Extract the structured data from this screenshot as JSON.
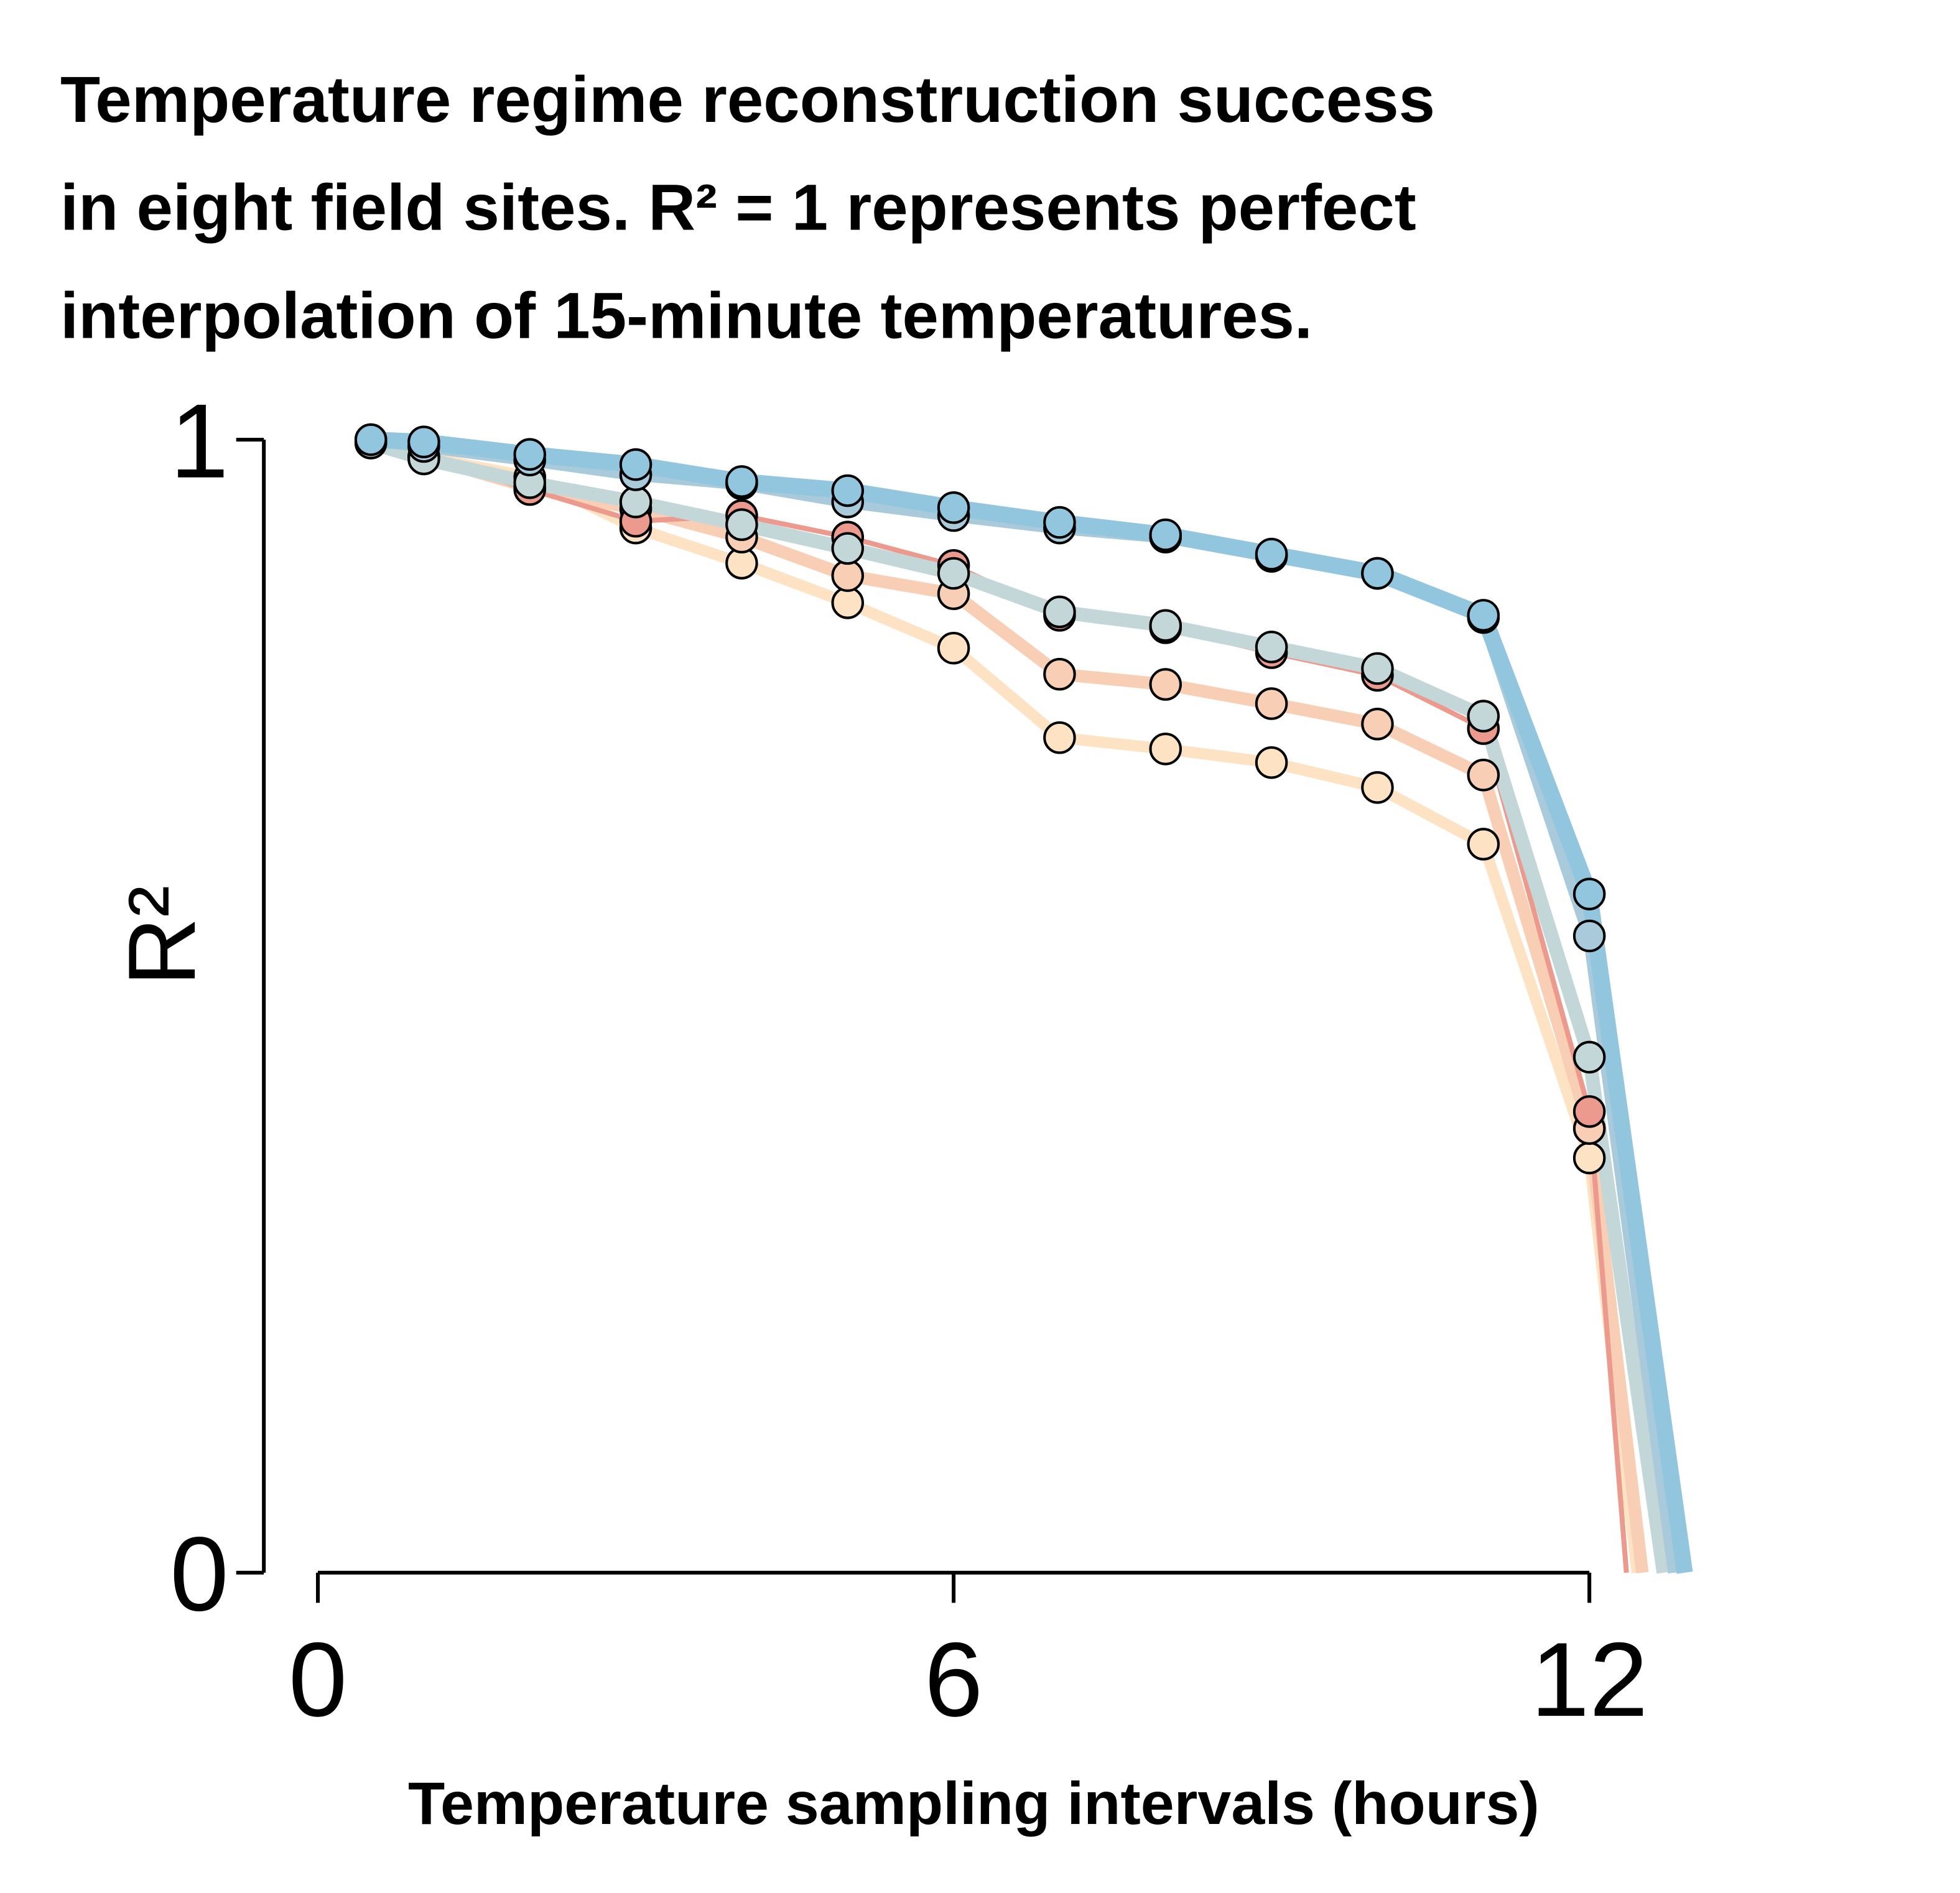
{
  "chart_data": {
    "type": "line",
    "title_lines": [
      "Temperature regime reconstruction success",
      "in eight field sites. R² = 1 represents perfect",
      "interpolation of 15-minute temperatures."
    ],
    "x_label": "Temperature sampling intervals (hours)",
    "y_label": "R²",
    "xlim": [
      0,
      12
    ],
    "xticks": [
      0,
      6,
      12
    ],
    "ylim": [
      0,
      1
    ],
    "yticks": [
      0,
      1
    ],
    "series": [
      {
        "color": "#fde3c3",
        "width": 9,
        "x": [
          0.5,
          1,
          2,
          3,
          4,
          5,
          6,
          7,
          8,
          9,
          10,
          11,
          12,
          12.45
        ],
        "values": [
          0.998,
          0.985,
          0.967,
          0.922,
          0.891,
          0.856,
          0.816,
          0.737,
          0.727,
          0.715,
          0.693,
          0.643,
          0.366,
          0
        ]
      },
      {
        "color": "#f8cfb5",
        "width": 10,
        "x": [
          0.5,
          1,
          2,
          3,
          4,
          5,
          6,
          7,
          8,
          9,
          10,
          11,
          12,
          12.5
        ],
        "values": [
          0.998,
          0.985,
          0.958,
          0.939,
          0.914,
          0.88,
          0.864,
          0.793,
          0.784,
          0.767,
          0.749,
          0.704,
          0.392,
          0
        ]
      },
      {
        "color": "#ec9a8e",
        "width": 4,
        "x": [
          0.5,
          1,
          2,
          3,
          4,
          5,
          6,
          7,
          8,
          9,
          10,
          11,
          12,
          12.35
        ],
        "values": [
          0.998,
          0.985,
          0.956,
          0.928,
          0.933,
          0.914,
          0.889,
          0.845,
          0.834,
          0.812,
          0.792,
          0.745,
          0.407,
          0
        ]
      },
      {
        "color": "#c3d6d8",
        "width": 11,
        "x": [
          0.5,
          1,
          2,
          3,
          4,
          5,
          6,
          7,
          8,
          9,
          10,
          11,
          12,
          12.7
        ],
        "values": [
          0.997,
          0.983,
          0.962,
          0.945,
          0.925,
          0.904,
          0.882,
          0.848,
          0.836,
          0.817,
          0.798,
          0.756,
          0.455,
          0
        ]
      },
      {
        "color": "#a9cadb",
        "width": 10,
        "x": [
          0.5,
          1,
          2,
          3,
          4,
          5,
          6,
          7,
          8,
          9,
          10,
          11,
          12,
          12.8
        ],
        "values": [
          1.0,
          0.994,
          0.982,
          0.969,
          0.961,
          0.945,
          0.933,
          0.922,
          0.914,
          0.897,
          0.882,
          0.843,
          0.562,
          0
        ]
      },
      {
        "color": "#92c5de",
        "width": 13,
        "x": [
          0.5,
          1,
          2,
          3,
          4,
          5,
          6,
          7,
          8,
          9,
          10,
          11,
          12,
          12.9
        ],
        "values": [
          1.0,
          0.998,
          0.987,
          0.978,
          0.963,
          0.955,
          0.94,
          0.927,
          0.916,
          0.899,
          0.882,
          0.845,
          0.599,
          0
        ]
      }
    ]
  }
}
